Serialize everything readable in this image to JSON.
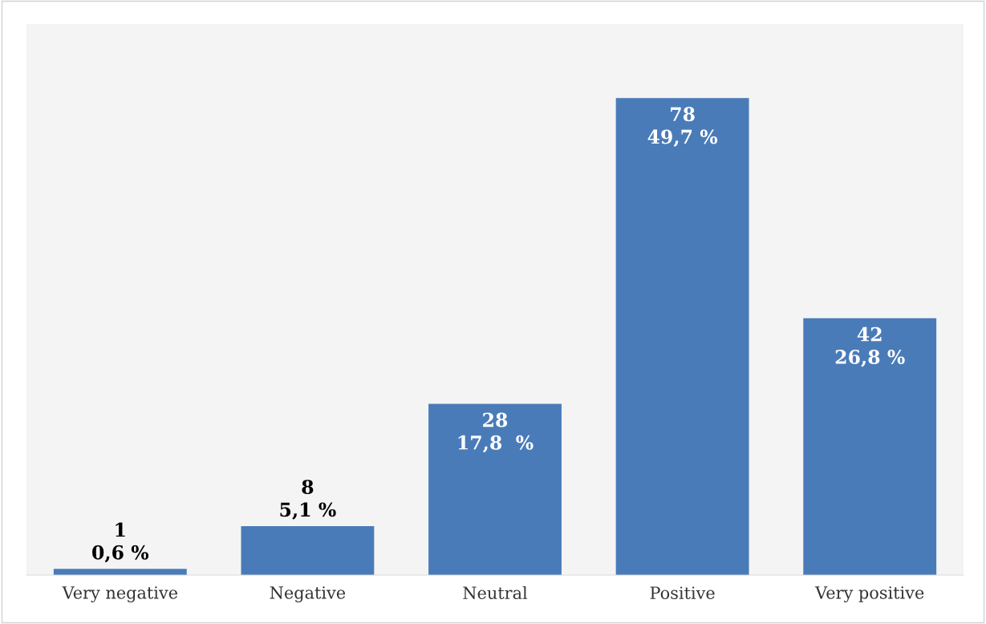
{
  "chart_data": {
    "type": "bar",
    "categories": [
      "Very negative",
      "Negative",
      "Neutral",
      "Positive",
      "Very positive"
    ],
    "values": [
      1,
      8,
      28,
      78,
      42
    ],
    "color": "#4a7bb9",
    "value_labels": [
      "1\n0,6 %",
      "8\n5,1 %",
      "28\n17,8  %",
      "78\n49,7 %",
      "42\n26,8 %"
    ],
    "grid": false,
    "legend": false
  }
}
